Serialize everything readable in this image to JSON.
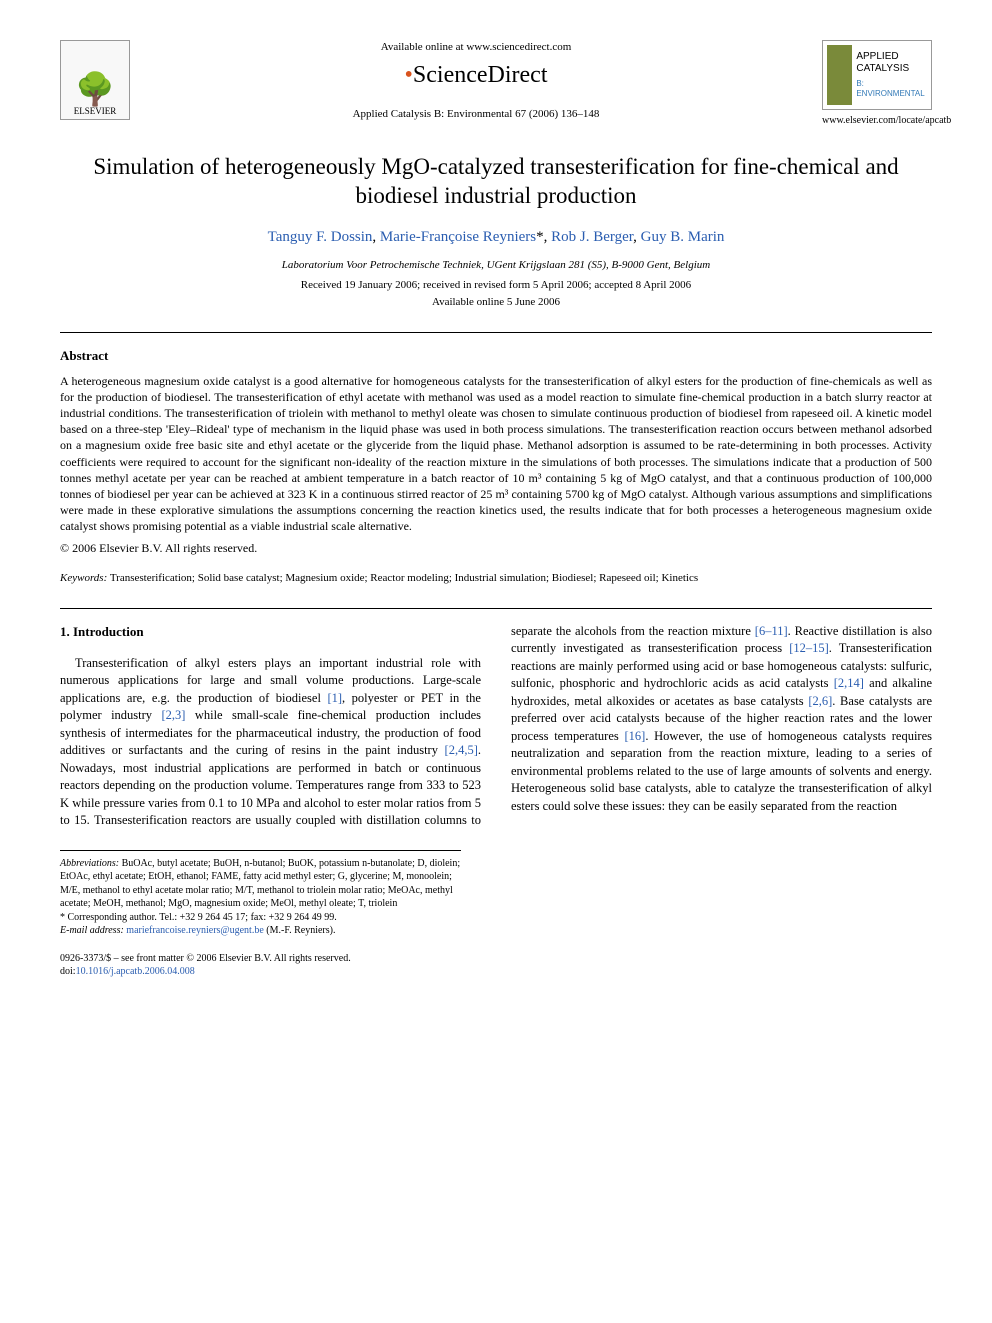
{
  "header": {
    "elsevier_label": "ELSEVIER",
    "available_online": "Available online at www.sciencedirect.com",
    "sciencedirect": "ScienceDirect",
    "journal_ref": "Applied Catalysis B: Environmental 67 (2006) 136–148",
    "badge_line1": "APPLIED",
    "badge_line2": "CATALYSIS",
    "badge_sub": "B: ENVIRONMENTAL",
    "locate_url": "www.elsevier.com/locate/apcatb"
  },
  "title": "Simulation of heterogeneously MgO-catalyzed transesterification for fine-chemical and biodiesel industrial production",
  "authors": {
    "a1": "Tanguy F. Dossin",
    "a2": "Marie-Françoise Reyniers",
    "a2_marker": "*",
    "a3": "Rob J. Berger",
    "a4": "Guy B. Marin"
  },
  "affiliation": "Laboratorium Voor Petrochemische Techniek, UGent Krijgslaan 281 (S5), B-9000 Gent, Belgium",
  "dates": {
    "received": "Received 19 January 2006; received in revised form 5 April 2006; accepted 8 April 2006",
    "online": "Available online 5 June 2006"
  },
  "abstract": {
    "heading": "Abstract",
    "body": "A heterogeneous magnesium oxide catalyst is a good alternative for homogeneous catalysts for the transesterification of alkyl esters for the production of fine-chemicals as well as for the production of biodiesel. The transesterification of ethyl acetate with methanol was used as a model reaction to simulate fine-chemical production in a batch slurry reactor at industrial conditions. The transesterification of triolein with methanol to methyl oleate was chosen to simulate continuous production of biodiesel from rapeseed oil. A kinetic model based on a three-step 'Eley–Rideal' type of mechanism in the liquid phase was used in both process simulations. The transesterification reaction occurs between methanol adsorbed on a magnesium oxide free basic site and ethyl acetate or the glyceride from the liquid phase. Methanol adsorption is assumed to be rate-determining in both processes. Activity coefficients were required to account for the significant non-ideality of the reaction mixture in the simulations of both processes. The simulations indicate that a production of 500 tonnes methyl acetate per year can be reached at ambient temperature in a batch reactor of 10 m³ containing 5 kg of MgO catalyst, and that a continuous production of 100,000 tonnes of biodiesel per year can be achieved at 323 K in a continuous stirred reactor of 25 m³ containing 5700 kg of MgO catalyst. Although various assumptions and simplifications were made in these explorative simulations the assumptions concerning the reaction kinetics used, the results indicate that for both processes a heterogeneous magnesium oxide catalyst shows promising potential as a viable industrial scale alternative.",
    "copyright": "© 2006 Elsevier B.V. All rights reserved."
  },
  "keywords": {
    "label": "Keywords:",
    "text": " Transesterification; Solid base catalyst; Magnesium oxide; Reactor modeling; Industrial simulation; Biodiesel; Rapeseed oil; Kinetics"
  },
  "intro": {
    "heading": "1. Introduction",
    "para1_a": "Transesterification of alkyl esters plays an important industrial role with numerous applications for large and small volume productions. Large-scale applications are, e.g. the production of biodiesel ",
    "ref1": "[1]",
    "para1_b": ", polyester or PET in the polymer industry ",
    "ref23": "[2,3]",
    "para1_c": " while small-scale fine-chemical production includes synthesis of intermediates for the pharmaceutical industry, the production of food additives or surfactants and the curing of resins in the paint industry ",
    "ref245": "[2,4,5]",
    "para1_d": ". Nowadays, most industrial applications are performed in batch or continuous reactors depending on the production volume. Temperatures range from 333 to 523 K while pressure varies from 0.1 to 10 MPa and alcohol to ester molar ratios from 5 to 15. Transesterification reactors are usually coupled with distillation columns to separate the alcohols from the reaction mixture ",
    "ref611": "[6–11]",
    "para1_e": ". Reactive distillation is also currently investigated as transesterification process ",
    "ref1215": "[12–15]",
    "para1_f": ". Transesterification reactions are mainly performed using acid or base homogeneous catalysts: sulfuric, sulfonic, phosphoric and hydrochloric acids as acid catalysts ",
    "ref214": "[2,14]",
    "para1_g": " and alkaline hydroxides, metal alkoxides or acetates as base catalysts ",
    "ref26": "[2,6]",
    "para1_h": ". Base catalysts are preferred over acid catalysts because of the higher reaction rates and the lower process temperatures ",
    "ref16": "[16]",
    "para1_i": ". However, the use of homogeneous catalysts requires neutralization and separation from the reaction mixture, leading to a series of environmental problems related to the use of large amounts of solvents and energy. Heterogeneous solid base catalysts, able to catalyze the transesterification of alkyl esters could solve these issues: they can be easily separated from the reaction"
  },
  "footnotes": {
    "abbrev_label": "Abbreviations:",
    "abbrev_text": " BuOAc, butyl acetate; BuOH, n-butanol; BuOK, potassium n-butanolate; D, diolein; EtOAc, ethyl acetate; EtOH, ethanol; FAME, fatty acid methyl ester; G, glycerine; M, monoolein; M/E, methanol to ethyl acetate molar ratio; M/T, methanol to triolein molar ratio; MeOAc, methyl acetate; MeOH, methanol; MgO, magnesium oxide; MeOl, methyl oleate; T, triolein",
    "corr_label": "* Corresponding author. Tel.: +32 9 264 45 17; fax: +32 9 264 49 99.",
    "email_label": "E-mail address:",
    "email": "mariefrancoise.reyniers@ugent.be",
    "email_who": " (M.-F. Reyniers)."
  },
  "footer": {
    "line1": "0926-3373/$ – see front matter © 2006 Elsevier B.V. All rights reserved.",
    "doi_label": "doi:",
    "doi": "10.1016/j.apcatb.2006.04.008"
  },
  "colors": {
    "link": "#2a5db0",
    "orange": "#d9531e",
    "badge_green": "#7a8a3a"
  }
}
